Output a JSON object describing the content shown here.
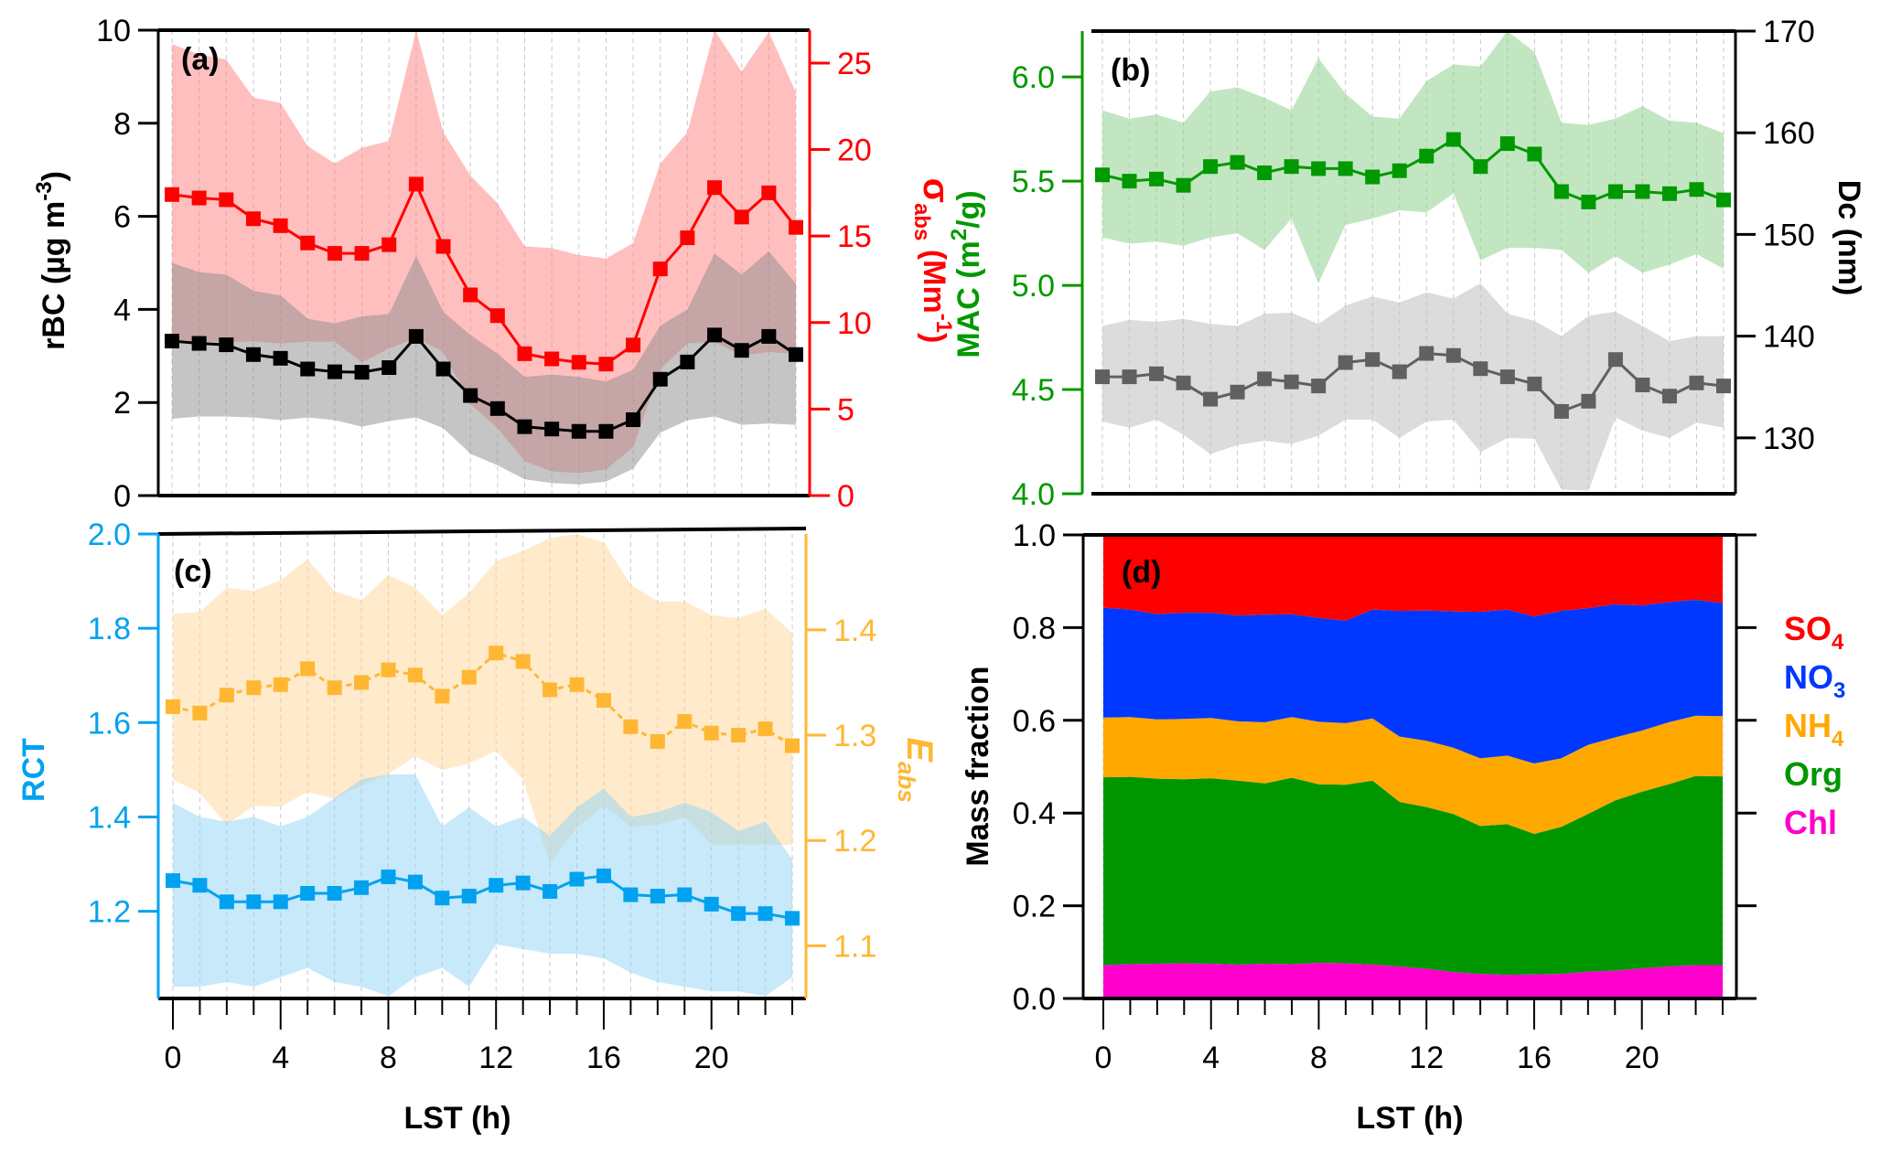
{
  "hours": [
    0,
    1,
    2,
    3,
    4,
    5,
    6,
    7,
    8,
    9,
    10,
    11,
    12,
    13,
    14,
    15,
    16,
    17,
    18,
    19,
    20,
    21,
    22,
    23
  ],
  "colors": {
    "rbc_line": "#000000",
    "rbc_band": "#8c8c8c",
    "sabs_line": "#ff0000",
    "sabs_band": "#ff8080",
    "mac_line": "#009900",
    "mac_band": "#8fd18f",
    "dc_line": "#606060",
    "dc_band": "#bfbfbf",
    "rct_line": "#00a2f0",
    "rct_band": "#8fd4f5",
    "eabs_line": "#ffb733",
    "eabs_band": "#ffd9a0",
    "so4": "#ff0000",
    "no3": "#0038ff",
    "nh4": "#ffa800",
    "org": "#009600",
    "chl": "#ff00cc",
    "rct_axis": "#00a2f0",
    "eabs_axis": "#ffb733",
    "mac_axis": "#009900",
    "sabs_axis": "#ff0000"
  },
  "chart_data": [
    {
      "type": "line",
      "panel_label": "(a)",
      "xlabel": "",
      "x": [
        0,
        1,
        2,
        3,
        4,
        5,
        6,
        7,
        8,
        9,
        10,
        11,
        12,
        13,
        14,
        15,
        16,
        17,
        18,
        19,
        20,
        21,
        22,
        23
      ],
      "xlim": [
        -0.3,
        23.3
      ],
      "grid": "vertical dashed",
      "ylabel": "rBC (µg m-3)",
      "ylim": [
        0,
        10
      ],
      "yticks": [
        "0",
        "2",
        "4",
        "6",
        "8",
        "10"
      ],
      "y2label": "σabs (Mm-1)",
      "y2lim": [
        0,
        26.9
      ],
      "y2ticks": [
        "0",
        "5",
        "10",
        "15",
        "20",
        "25"
      ],
      "series": [
        {
          "name": "rBC",
          "axis": "left",
          "values": [
            3.32,
            3.27,
            3.24,
            3.03,
            2.95,
            2.72,
            2.66,
            2.65,
            2.75,
            3.42,
            2.72,
            2.15,
            1.87,
            1.48,
            1.43,
            1.38,
            1.38,
            1.63,
            2.5,
            2.87,
            3.45,
            3.12,
            3.42,
            3.03
          ],
          "upper": [
            5.0,
            4.8,
            4.75,
            4.4,
            4.3,
            3.8,
            3.7,
            3.85,
            3.9,
            5.15,
            3.95,
            3.45,
            3.05,
            2.55,
            2.6,
            2.55,
            2.45,
            2.7,
            3.65,
            4.0,
            5.2,
            4.75,
            5.25,
            4.55
          ],
          "lower": [
            1.65,
            1.7,
            1.7,
            1.68,
            1.62,
            1.68,
            1.62,
            1.48,
            1.6,
            1.68,
            1.45,
            0.9,
            0.65,
            0.35,
            0.27,
            0.24,
            0.3,
            0.58,
            1.35,
            1.62,
            1.7,
            1.52,
            1.55,
            1.52
          ]
        },
        {
          "name": "σabs",
          "axis": "right",
          "values": [
            17.4,
            17.2,
            17.1,
            16.0,
            15.6,
            14.6,
            14.0,
            14.0,
            14.5,
            18.0,
            14.4,
            11.6,
            10.4,
            8.2,
            7.9,
            7.7,
            7.6,
            8.7,
            13.1,
            14.9,
            17.8,
            16.1,
            17.5,
            15.5
          ],
          "upper": [
            26.1,
            25.5,
            25.2,
            23.0,
            22.7,
            20.2,
            19.2,
            20.1,
            20.5,
            26.9,
            21.0,
            18.5,
            16.9,
            14.4,
            14.3,
            13.9,
            13.7,
            14.6,
            19.2,
            21.0,
            26.9,
            24.5,
            26.8,
            23.3
          ],
          "lower": [
            8.9,
            8.9,
            8.9,
            8.9,
            8.8,
            8.9,
            8.9,
            7.7,
            8.5,
            9.1,
            8.3,
            5.3,
            3.9,
            2.0,
            1.4,
            1.3,
            1.5,
            2.8,
            7.3,
            8.8,
            8.9,
            8.1,
            8.3,
            8.2
          ]
        }
      ]
    },
    {
      "type": "line",
      "panel_label": "(b)",
      "x": [
        0,
        1,
        2,
        3,
        4,
        5,
        6,
        7,
        8,
        9,
        10,
        11,
        12,
        13,
        14,
        15,
        16,
        17,
        18,
        19,
        20,
        21,
        22,
        23
      ],
      "xlim": [
        -0.3,
        23.3
      ],
      "grid": "vertical dashed",
      "ylabel": "MAC (m2/g)",
      "ylim": [
        4.0,
        6.22
      ],
      "yticks": [
        "4.0",
        "4.5",
        "5.0",
        "5.5",
        "6.0"
      ],
      "y2label": "Dc (nm)",
      "y2lim": [
        124.5,
        170
      ],
      "y2ticks": [
        "130",
        "140",
        "150",
        "160",
        "170"
      ],
      "series": [
        {
          "name": "MAC",
          "axis": "left",
          "values": [
            5.53,
            5.5,
            5.51,
            5.48,
            5.57,
            5.59,
            5.54,
            5.57,
            5.56,
            5.56,
            5.52,
            5.55,
            5.62,
            5.7,
            5.57,
            5.68,
            5.63,
            5.45,
            5.4,
            5.45,
            5.45,
            5.44,
            5.46,
            5.41
          ],
          "upper": [
            5.84,
            5.8,
            5.82,
            5.78,
            5.93,
            5.95,
            5.9,
            5.84,
            6.09,
            5.92,
            5.81,
            5.8,
            5.98,
            6.06,
            6.05,
            6.22,
            6.12,
            5.78,
            5.77,
            5.8,
            5.86,
            5.79,
            5.78,
            5.73
          ],
          "lower": [
            5.23,
            5.2,
            5.21,
            5.19,
            5.23,
            5.25,
            5.17,
            5.32,
            5.01,
            5.29,
            5.32,
            5.36,
            5.35,
            5.44,
            5.12,
            5.18,
            5.18,
            5.17,
            5.06,
            5.14,
            5.06,
            5.1,
            5.15,
            5.08
          ]
        },
        {
          "name": "Dc",
          "axis": "right",
          "values": [
            136.0,
            136.0,
            136.3,
            135.4,
            133.8,
            134.5,
            135.8,
            135.5,
            135.1,
            137.4,
            137.7,
            136.5,
            138.3,
            138.1,
            136.8,
            136.0,
            135.3,
            132.6,
            133.6,
            137.7,
            135.2,
            134.1,
            135.4,
            135.1
          ],
          "upper": [
            141.0,
            141.6,
            141.4,
            141.7,
            141.2,
            141.0,
            142.2,
            142.3,
            141.2,
            143.0,
            143.9,
            143.3,
            144.3,
            143.7,
            145.2,
            142.2,
            141.5,
            140.0,
            142.0,
            142.4,
            141.0,
            139.5,
            140.0,
            140.0
          ],
          "lower": [
            131.6,
            131.0,
            131.8,
            130.3,
            128.4,
            129.3,
            129.7,
            129.4,
            130.2,
            131.8,
            131.8,
            130.0,
            131.6,
            131.8,
            128.6,
            130.0,
            129.9,
            124.9,
            124.8,
            132.0,
            130.7,
            130.0,
            131.5,
            131.0
          ]
        }
      ]
    },
    {
      "type": "line",
      "panel_label": "(c)",
      "xlabel": "LST (h)",
      "x": [
        0,
        1,
        2,
        3,
        4,
        5,
        6,
        7,
        8,
        9,
        10,
        11,
        12,
        13,
        14,
        15,
        16,
        17,
        18,
        19,
        20,
        21,
        22,
        23
      ],
      "xlim": [
        -0.3,
        23.3
      ],
      "xticks": [
        "0",
        "4",
        "8",
        "12",
        "16",
        "20"
      ],
      "grid": "vertical dashed",
      "ylabel": "RCT",
      "ylim": [
        1.015,
        2.0
      ],
      "yticks": [
        "1.2",
        "1.4",
        "1.6",
        "1.8",
        "2.0"
      ],
      "y2label": "Eabs",
      "y2lim": [
        1.05,
        1.491
      ],
      "y2ticks": [
        "1.1",
        "1.2",
        "1.3",
        "1.4"
      ],
      "series": [
        {
          "name": "RCT",
          "axis": "left",
          "values": [
            1.265,
            1.255,
            1.22,
            1.22,
            1.22,
            1.238,
            1.238,
            1.25,
            1.273,
            1.262,
            1.228,
            1.232,
            1.255,
            1.26,
            1.242,
            1.268,
            1.275,
            1.235,
            1.232,
            1.235,
            1.215,
            1.195,
            1.195,
            1.185
          ],
          "upper": [
            1.43,
            1.4,
            1.39,
            1.4,
            1.38,
            1.4,
            1.44,
            1.48,
            1.49,
            1.49,
            1.38,
            1.42,
            1.38,
            1.4,
            1.36,
            1.42,
            1.46,
            1.4,
            1.41,
            1.43,
            1.41,
            1.37,
            1.39,
            1.31
          ],
          "lower": [
            1.04,
            1.04,
            1.05,
            1.04,
            1.06,
            1.08,
            1.05,
            1.04,
            1.02,
            1.06,
            1.08,
            1.04,
            1.13,
            1.12,
            1.11,
            1.11,
            1.1,
            1.07,
            1.05,
            1.04,
            1.03,
            1.03,
            1.02,
            1.06
          ]
        },
        {
          "name": "Eabs",
          "axis": "right",
          "values": [
            1.327,
            1.321,
            1.338,
            1.345,
            1.348,
            1.363,
            1.345,
            1.35,
            1.362,
            1.357,
            1.337,
            1.355,
            1.378,
            1.37,
            1.343,
            1.348,
            1.333,
            1.308,
            1.294,
            1.313,
            1.302,
            1.3,
            1.306,
            1.29
          ],
          "upper": [
            1.415,
            1.417,
            1.44,
            1.437,
            1.447,
            1.467,
            1.437,
            1.428,
            1.452,
            1.44,
            1.414,
            1.435,
            1.465,
            1.475,
            1.487,
            1.491,
            1.483,
            1.443,
            1.427,
            1.427,
            1.414,
            1.411,
            1.42,
            1.397
          ],
          "lower": [
            1.258,
            1.245,
            1.215,
            1.233,
            1.232,
            1.246,
            1.24,
            1.252,
            1.263,
            1.28,
            1.267,
            1.273,
            1.285,
            1.258,
            1.178,
            1.212,
            1.233,
            1.213,
            1.215,
            1.222,
            1.196,
            1.196,
            1.196,
            1.196
          ]
        }
      ]
    },
    {
      "type": "area",
      "stacked": true,
      "panel_label": "(d)",
      "xlabel": "LST (h)",
      "ylabel": "Mass fraction",
      "x": [
        0,
        1,
        2,
        3,
        4,
        5,
        6,
        7,
        8,
        9,
        10,
        11,
        12,
        13,
        14,
        15,
        16,
        17,
        18,
        19,
        20,
        21,
        22,
        23
      ],
      "xlim": [
        -0.3,
        23.3
      ],
      "xticks": [
        "0",
        "4",
        "8",
        "12",
        "16",
        "20"
      ],
      "ylim": [
        0,
        1
      ],
      "yticks": [
        "0.0",
        "0.2",
        "0.4",
        "0.6",
        "0.8",
        "1.0"
      ],
      "legend_position": "right",
      "series": [
        {
          "name": "Chl",
          "key": "chl",
          "values": [
            0.072,
            0.074,
            0.075,
            0.076,
            0.075,
            0.073,
            0.075,
            0.074,
            0.077,
            0.076,
            0.073,
            0.069,
            0.064,
            0.057,
            0.053,
            0.051,
            0.052,
            0.053,
            0.058,
            0.06,
            0.065,
            0.069,
            0.072,
            0.072
          ]
        },
        {
          "name": "Org",
          "key": "org",
          "values": [
            0.405,
            0.404,
            0.399,
            0.397,
            0.4,
            0.397,
            0.389,
            0.402,
            0.385,
            0.385,
            0.397,
            0.355,
            0.349,
            0.341,
            0.319,
            0.325,
            0.303,
            0.317,
            0.34,
            0.367,
            0.381,
            0.393,
            0.408,
            0.407
          ]
        },
        {
          "name": "NH4",
          "key": "nh4",
          "values": [
            0.129,
            0.129,
            0.128,
            0.13,
            0.13,
            0.128,
            0.132,
            0.131,
            0.135,
            0.133,
            0.134,
            0.141,
            0.143,
            0.143,
            0.146,
            0.148,
            0.152,
            0.148,
            0.149,
            0.136,
            0.132,
            0.134,
            0.13,
            0.13
          ]
        },
        {
          "name": "NO3",
          "key": "no3",
          "values": [
            0.237,
            0.232,
            0.227,
            0.229,
            0.227,
            0.228,
            0.232,
            0.222,
            0.224,
            0.221,
            0.235,
            0.271,
            0.281,
            0.294,
            0.316,
            0.315,
            0.317,
            0.318,
            0.295,
            0.287,
            0.27,
            0.259,
            0.25,
            0.244
          ]
        },
        {
          "name": "SO4",
          "key": "so4",
          "values": [
            0.157,
            0.161,
            0.171,
            0.168,
            0.168,
            0.174,
            0.172,
            0.171,
            0.179,
            0.185,
            0.161,
            0.164,
            0.163,
            0.165,
            0.166,
            0.161,
            0.176,
            0.164,
            0.158,
            0.15,
            0.152,
            0.145,
            0.14,
            0.147
          ]
        }
      ]
    }
  ],
  "labels": {
    "panel_a": "(a)",
    "panel_b": "(b)",
    "panel_c": "(c)",
    "panel_d": "(d)",
    "rbc_axis_title": "rBC (µg m",
    "rbc_axis_sup": "-3",
    "rbc_axis_close": ")",
    "sabs_axis_title_sigma": "σ",
    "sabs_axis_sub": "abs",
    "sabs_axis_unit": " (Mm",
    "sabs_axis_sup": "-1",
    "sabs_axis_close": ")",
    "mac_axis_title": "MAC (m",
    "mac_axis_sup": "2",
    "mac_axis_close": "/g)",
    "dc_axis_title": "Dc (nm)",
    "rct_axis_title": "RCT",
    "eabs_axis_E": "E",
    "eabs_axis_sub": "abs",
    "mass_axis_title": "Mass fraction",
    "x_axis_title_c": "LST (h)",
    "x_axis_title_d": "LST (h)"
  },
  "legend": [
    {
      "base": "SO",
      "sub": "4",
      "key": "so4"
    },
    {
      "base": "NO",
      "sub": "3",
      "key": "no3"
    },
    {
      "base": "NH",
      "sub": "4",
      "key": "nh4"
    },
    {
      "base": "Org",
      "sub": "",
      "key": "org"
    },
    {
      "base": "Chl",
      "sub": "",
      "key": "chl"
    }
  ]
}
